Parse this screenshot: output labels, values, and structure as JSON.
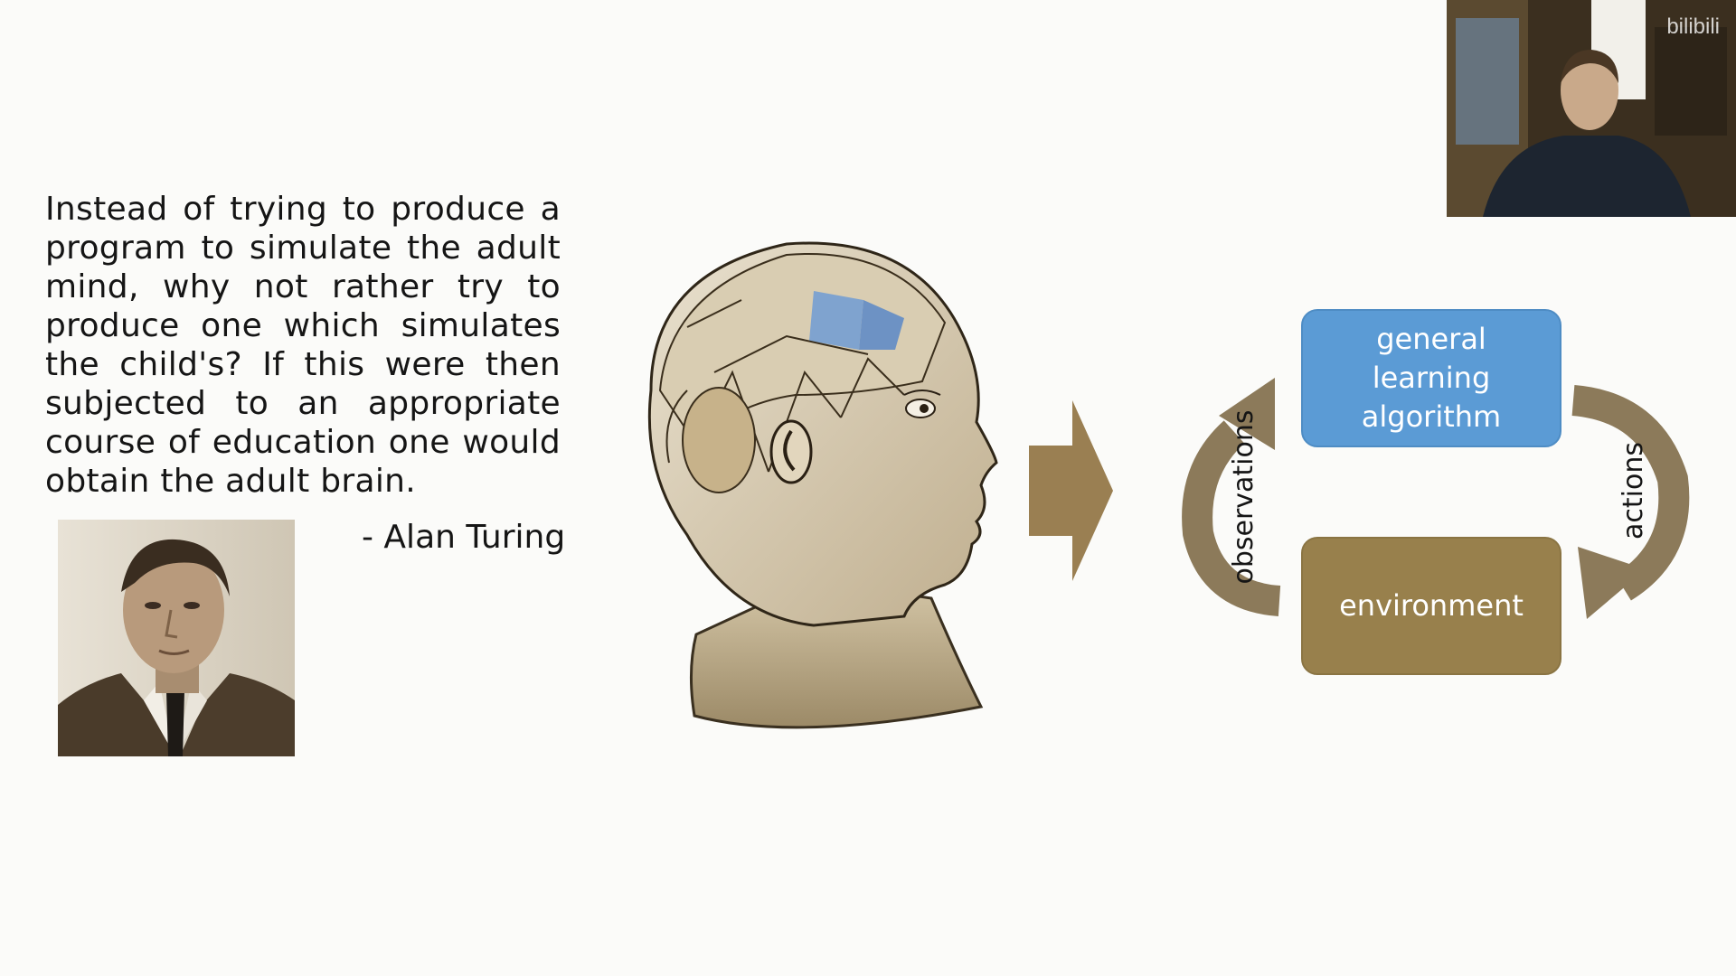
{
  "slide": {
    "quote": "Instead of trying to produce a program to simulate the adult mind, why not rather try to produce one which simulates the child's? If this were then subjected to an appropriate course of education one would obtain the adult brain.",
    "attribution": "- Alan Turing"
  },
  "diagram": {
    "algorithm_label": "general learning algorithm",
    "environment_label": "environment",
    "observations_label": "observations",
    "actions_label": "actions",
    "colors": {
      "algorithm_box": "#5b9bd5",
      "environment_box": "#98804c",
      "arrows": "#8c7a5a",
      "big_arrow": "#9a7f52"
    }
  },
  "webcam": {
    "watermark": "bilibili"
  }
}
